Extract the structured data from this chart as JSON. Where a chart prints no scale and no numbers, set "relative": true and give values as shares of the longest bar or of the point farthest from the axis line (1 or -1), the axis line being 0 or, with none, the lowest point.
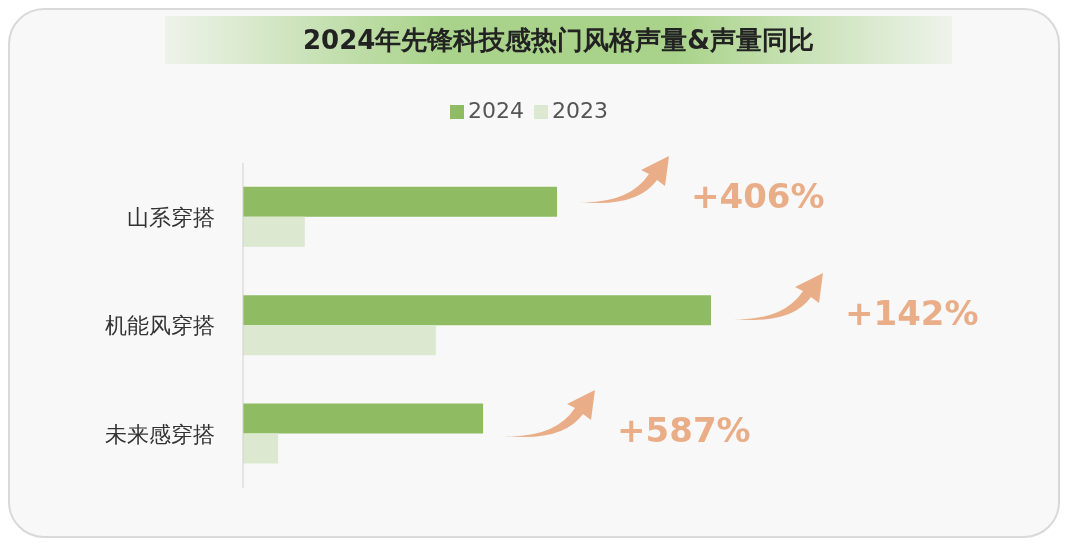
{
  "chart_data": {
    "type": "bar",
    "orientation": "horizontal",
    "relative": true,
    "title": "2024年先锋科技感热门风格声量&声量同比",
    "categories": [
      "山系穿搭",
      "机能风穿搭",
      "未来感穿搭"
    ],
    "series": [
      {
        "name": "2024",
        "color": "#8fbc62",
        "values": [
          0.671,
          1,
          0.513
        ]
      },
      {
        "name": "2023",
        "color": "#dce8cf",
        "values": [
          0.132,
          0.412,
          0.075
        ]
      }
    ],
    "annotations": [
      "+406%",
      "+142%",
      "+587%"
    ],
    "legend": "top"
  }
}
